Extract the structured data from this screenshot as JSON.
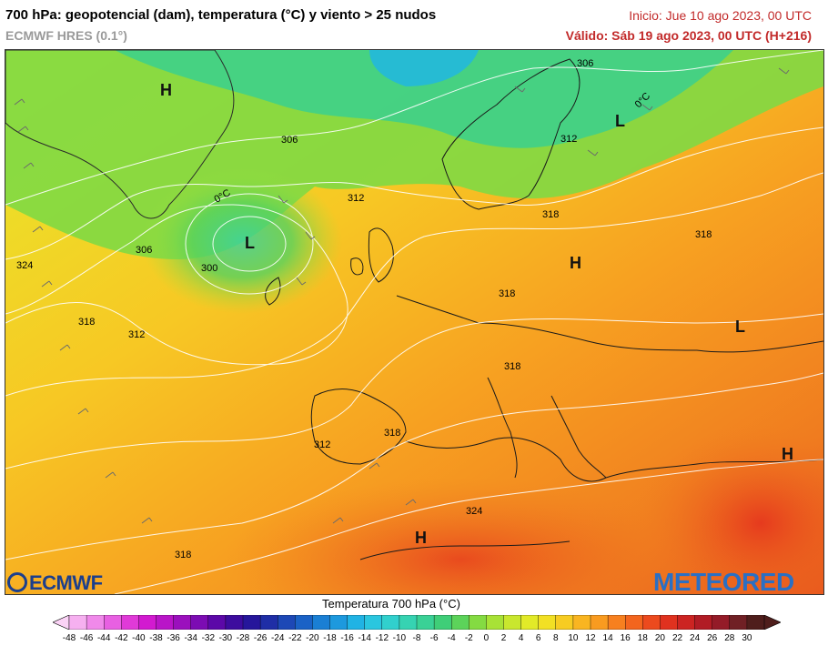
{
  "header": {
    "title": "700 hPa: geopotencial (dam), temperatura (°C) y viento > 25 nudos",
    "model": "ECMWF HRES (0.1°)",
    "init": "Inicio: Jue 10 ago 2023, 00 UTC",
    "valid": "Válido: Sáb 19 ago 2023, 00 UTC (H+216)"
  },
  "map": {
    "contour_labels": [
      "306",
      "312",
      "306",
      "312",
      "318",
      "318",
      "306",
      "324",
      "300",
      "318",
      "312",
      "318",
      "318",
      "312",
      "318",
      "324",
      "318"
    ],
    "pressure_centers": [
      "H",
      "L",
      "L",
      "H",
      "L",
      "H",
      "H"
    ],
    "isotherm_labels": [
      "0°C",
      "0°C"
    ]
  },
  "logos": {
    "left": "ECMWF",
    "right": "METEORED"
  },
  "colorbar": {
    "title": "Temperatura 700 hPa (°C)",
    "ticks": [
      "-48",
      "-46",
      "-44",
      "-42",
      "-40",
      "-38",
      "-36",
      "-34",
      "-32",
      "-30",
      "-28",
      "-26",
      "-24",
      "-22",
      "-20",
      "-18",
      "-16",
      "-14",
      "-12",
      "-10",
      "-8",
      "-6",
      "-4",
      "-2",
      "0",
      "2",
      "4",
      "6",
      "8",
      "10",
      "12",
      "14",
      "16",
      "18",
      "20",
      "22",
      "24",
      "26",
      "28",
      "30"
    ],
    "colors": [
      "#fbd3f6",
      "#f6b0f0",
      "#f089ea",
      "#e860e2",
      "#e03ad8",
      "#d21ad0",
      "#b915c8",
      "#9b10bd",
      "#7c0cb3",
      "#5c08a8",
      "#3d0c9e",
      "#26169b",
      "#1f2ea6",
      "#1d48b6",
      "#1a62c6",
      "#1a7fd4",
      "#1d99de",
      "#20b3e4",
      "#2ac6df",
      "#31d0cd",
      "#36d3b2",
      "#3ad196",
      "#3fce78",
      "#5cd35a",
      "#84db42",
      "#a8e236",
      "#c9e72e",
      "#e2ea28",
      "#f2e024",
      "#f7cc22",
      "#f9b521",
      "#f99b20",
      "#f7801f",
      "#f3651e",
      "#ec4a1e",
      "#e0321f",
      "#cc2422",
      "#b11c25",
      "#941b28",
      "#702025",
      "#4f1e1c"
    ],
    "accent": "#c22a2a"
  }
}
